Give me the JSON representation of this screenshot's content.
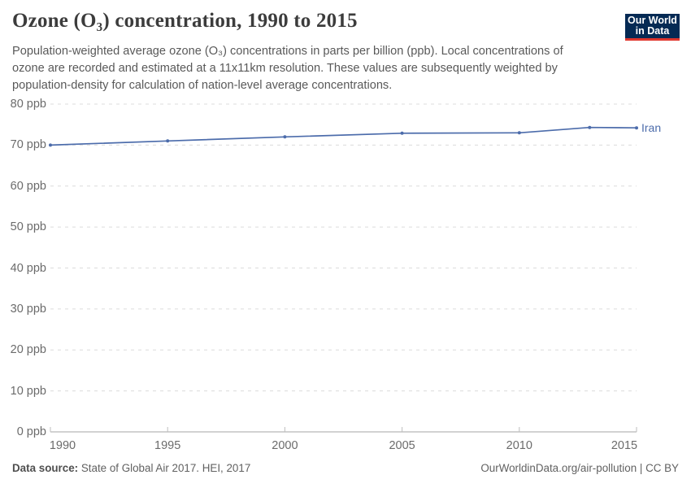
{
  "header": {
    "title": "Ozone (O₃) concentration, 1990 to 2015",
    "logo": {
      "line1": "Our World",
      "line2": "in Data"
    }
  },
  "subtitle_lines": [
    "Population-weighted average ozone (O₃) concentrations in parts per billion (ppb). Local concentrations of",
    "ozone are recorded and estimated at a 11x11km resolution. These values are subsequently weighted by",
    "population-density for calculation of nation-level average concentrations."
  ],
  "chart_data": {
    "type": "line",
    "title": "Ozone (O₃) concentration, 1990 to 2015",
    "series": [
      {
        "name": "Iran",
        "color": "#4c6cab",
        "x": [
          1990,
          1995,
          2000,
          2005,
          2010,
          2013,
          2015
        ],
        "values": [
          70.0,
          71.0,
          72.0,
          72.9,
          73.0,
          74.3,
          74.2
        ]
      }
    ],
    "xlabel": "",
    "ylabel": "",
    "xlim": [
      1990,
      2015
    ],
    "ylim": [
      0,
      80
    ],
    "x_ticks": [
      1990,
      1995,
      2000,
      2005,
      2010,
      2015
    ],
    "y_ticks": [
      0,
      10,
      20,
      30,
      40,
      50,
      60,
      70,
      80
    ],
    "y_tick_suffix": " ppb",
    "grid": "horizontal-dashed",
    "legend_position": "end-of-line"
  },
  "footer": {
    "source_label": "Data source:",
    "source_text": " State of Global Air 2017. HEI, 2017",
    "right_text": "OurWorldinData.org/air-pollution | CC BY"
  },
  "colors": {
    "accent_line": "#4c6cab",
    "logo_navy": "#052a54",
    "logo_red": "#e0372e",
    "grid": "#dcdcdc",
    "axis": "#a5a5a5",
    "tick": "#bdbdbd",
    "axis_text": "#6b6b6b"
  }
}
